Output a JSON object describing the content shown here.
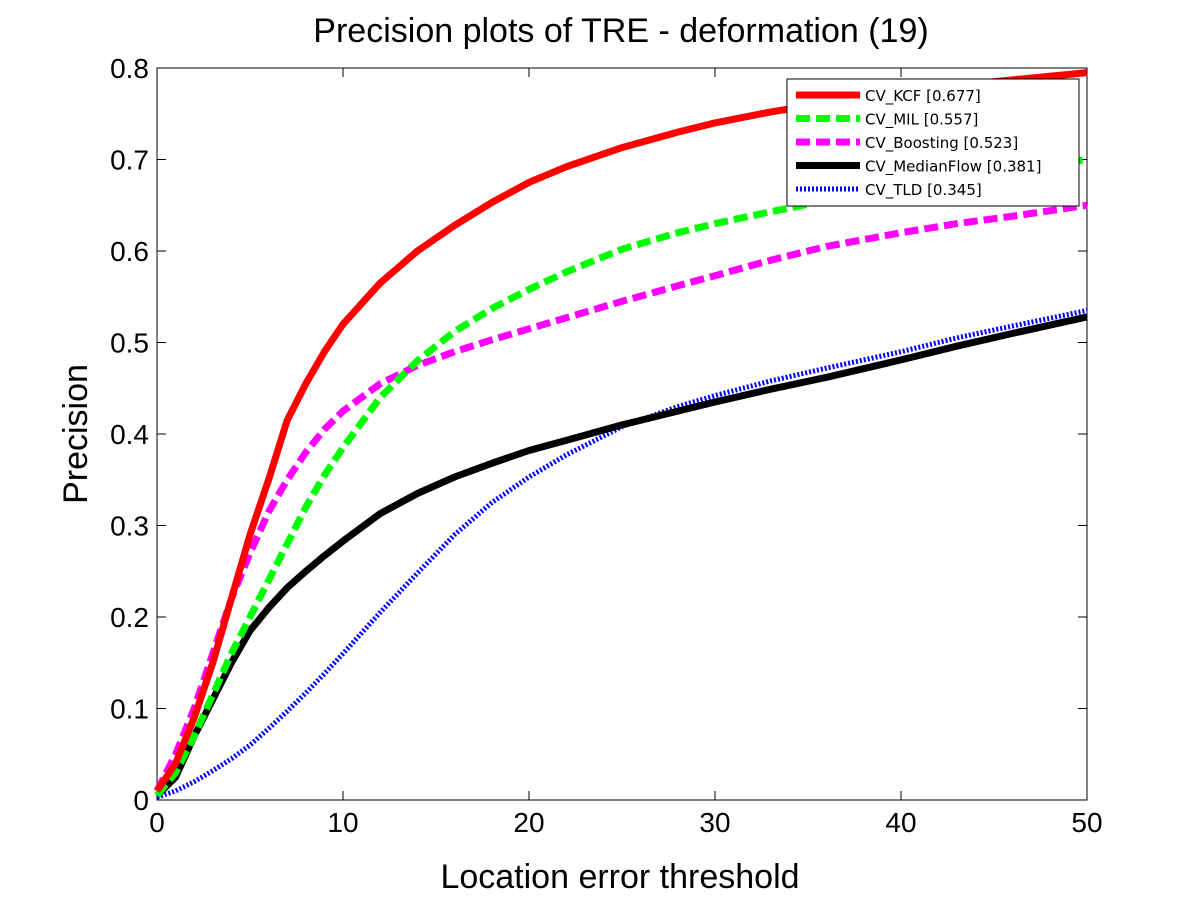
{
  "chart_data": {
    "type": "line",
    "title": "Precision plots of TRE - deformation (19)",
    "xlabel": "Location error threshold",
    "ylabel": "Precision",
    "xlim": [
      0,
      50
    ],
    "ylim": [
      0,
      0.8
    ],
    "xticks": [
      0,
      10,
      20,
      30,
      40,
      50
    ],
    "yticks": [
      0,
      0.1,
      0.2,
      0.3,
      0.4,
      0.5,
      0.6,
      0.7,
      0.8
    ],
    "xtick_labels": [
      "0",
      "10",
      "20",
      "30",
      "40",
      "50"
    ],
    "ytick_labels": [
      "0",
      "0.1",
      "0.2",
      "0.3",
      "0.4",
      "0.5",
      "0.6",
      "0.7",
      "0.8"
    ],
    "grid": false,
    "legend_position": "top-right",
    "series": [
      {
        "name": "CV_KCF [0.677]",
        "color": "#ff0000",
        "style": "solid",
        "x": [
          0,
          1,
          2,
          3,
          4,
          5,
          6,
          7,
          8,
          9,
          10,
          12,
          14,
          16,
          18,
          20,
          22,
          25,
          28,
          30,
          33,
          36,
          40,
          43,
          46,
          50
        ],
        "y": [
          0.01,
          0.04,
          0.09,
          0.15,
          0.22,
          0.29,
          0.35,
          0.415,
          0.455,
          0.49,
          0.52,
          0.565,
          0.6,
          0.628,
          0.653,
          0.675,
          0.692,
          0.713,
          0.73,
          0.74,
          0.752,
          0.762,
          0.773,
          0.781,
          0.787,
          0.795
        ]
      },
      {
        "name": "CV_MIL [0.557]",
        "color": "#00ff00",
        "style": "dashed",
        "x": [
          0,
          1,
          2,
          3,
          4,
          5,
          6,
          7,
          8,
          9,
          10,
          12,
          14,
          16,
          18,
          20,
          22,
          25,
          28,
          30,
          33,
          36,
          40,
          43,
          46,
          50
        ],
        "y": [
          0.005,
          0.03,
          0.07,
          0.115,
          0.16,
          0.2,
          0.24,
          0.28,
          0.32,
          0.355,
          0.385,
          0.44,
          0.48,
          0.512,
          0.537,
          0.558,
          0.577,
          0.602,
          0.62,
          0.63,
          0.643,
          0.655,
          0.668,
          0.678,
          0.688,
          0.7
        ]
      },
      {
        "name": "CV_Boosting [0.523]",
        "color": "#ff00ff",
        "style": "dashed",
        "x": [
          0,
          1,
          2,
          3,
          4,
          5,
          6,
          7,
          8,
          9,
          10,
          12,
          14,
          16,
          18,
          20,
          22,
          25,
          28,
          30,
          33,
          36,
          40,
          43,
          46,
          50
        ],
        "y": [
          0.01,
          0.05,
          0.1,
          0.16,
          0.22,
          0.27,
          0.315,
          0.35,
          0.38,
          0.405,
          0.425,
          0.455,
          0.475,
          0.49,
          0.503,
          0.515,
          0.527,
          0.545,
          0.562,
          0.573,
          0.59,
          0.605,
          0.62,
          0.63,
          0.638,
          0.65
        ]
      },
      {
        "name": "CV_MedianFlow [0.381]",
        "color": "#000000",
        "style": "solid",
        "x": [
          0,
          1,
          2,
          3,
          4,
          5,
          6,
          7,
          8,
          9,
          10,
          12,
          14,
          16,
          18,
          20,
          22,
          25,
          28,
          30,
          33,
          36,
          40,
          43,
          46,
          50
        ],
        "y": [
          0.005,
          0.025,
          0.07,
          0.11,
          0.15,
          0.185,
          0.21,
          0.232,
          0.25,
          0.267,
          0.283,
          0.313,
          0.335,
          0.353,
          0.368,
          0.382,
          0.393,
          0.41,
          0.425,
          0.435,
          0.449,
          0.462,
          0.481,
          0.496,
          0.51,
          0.528
        ]
      },
      {
        "name": "CV_TLD [0.345]",
        "color": "#0000ff",
        "style": "dotted",
        "x": [
          0,
          1,
          2,
          3,
          4,
          5,
          6,
          7,
          8,
          9,
          10,
          12,
          14,
          16,
          18,
          20,
          22,
          25,
          28,
          30,
          33,
          36,
          40,
          43,
          46,
          50
        ],
        "y": [
          0.003,
          0.01,
          0.02,
          0.032,
          0.045,
          0.06,
          0.078,
          0.097,
          0.117,
          0.138,
          0.16,
          0.205,
          0.248,
          0.29,
          0.325,
          0.353,
          0.377,
          0.408,
          0.43,
          0.442,
          0.458,
          0.472,
          0.49,
          0.505,
          0.518,
          0.535
        ]
      }
    ]
  }
}
